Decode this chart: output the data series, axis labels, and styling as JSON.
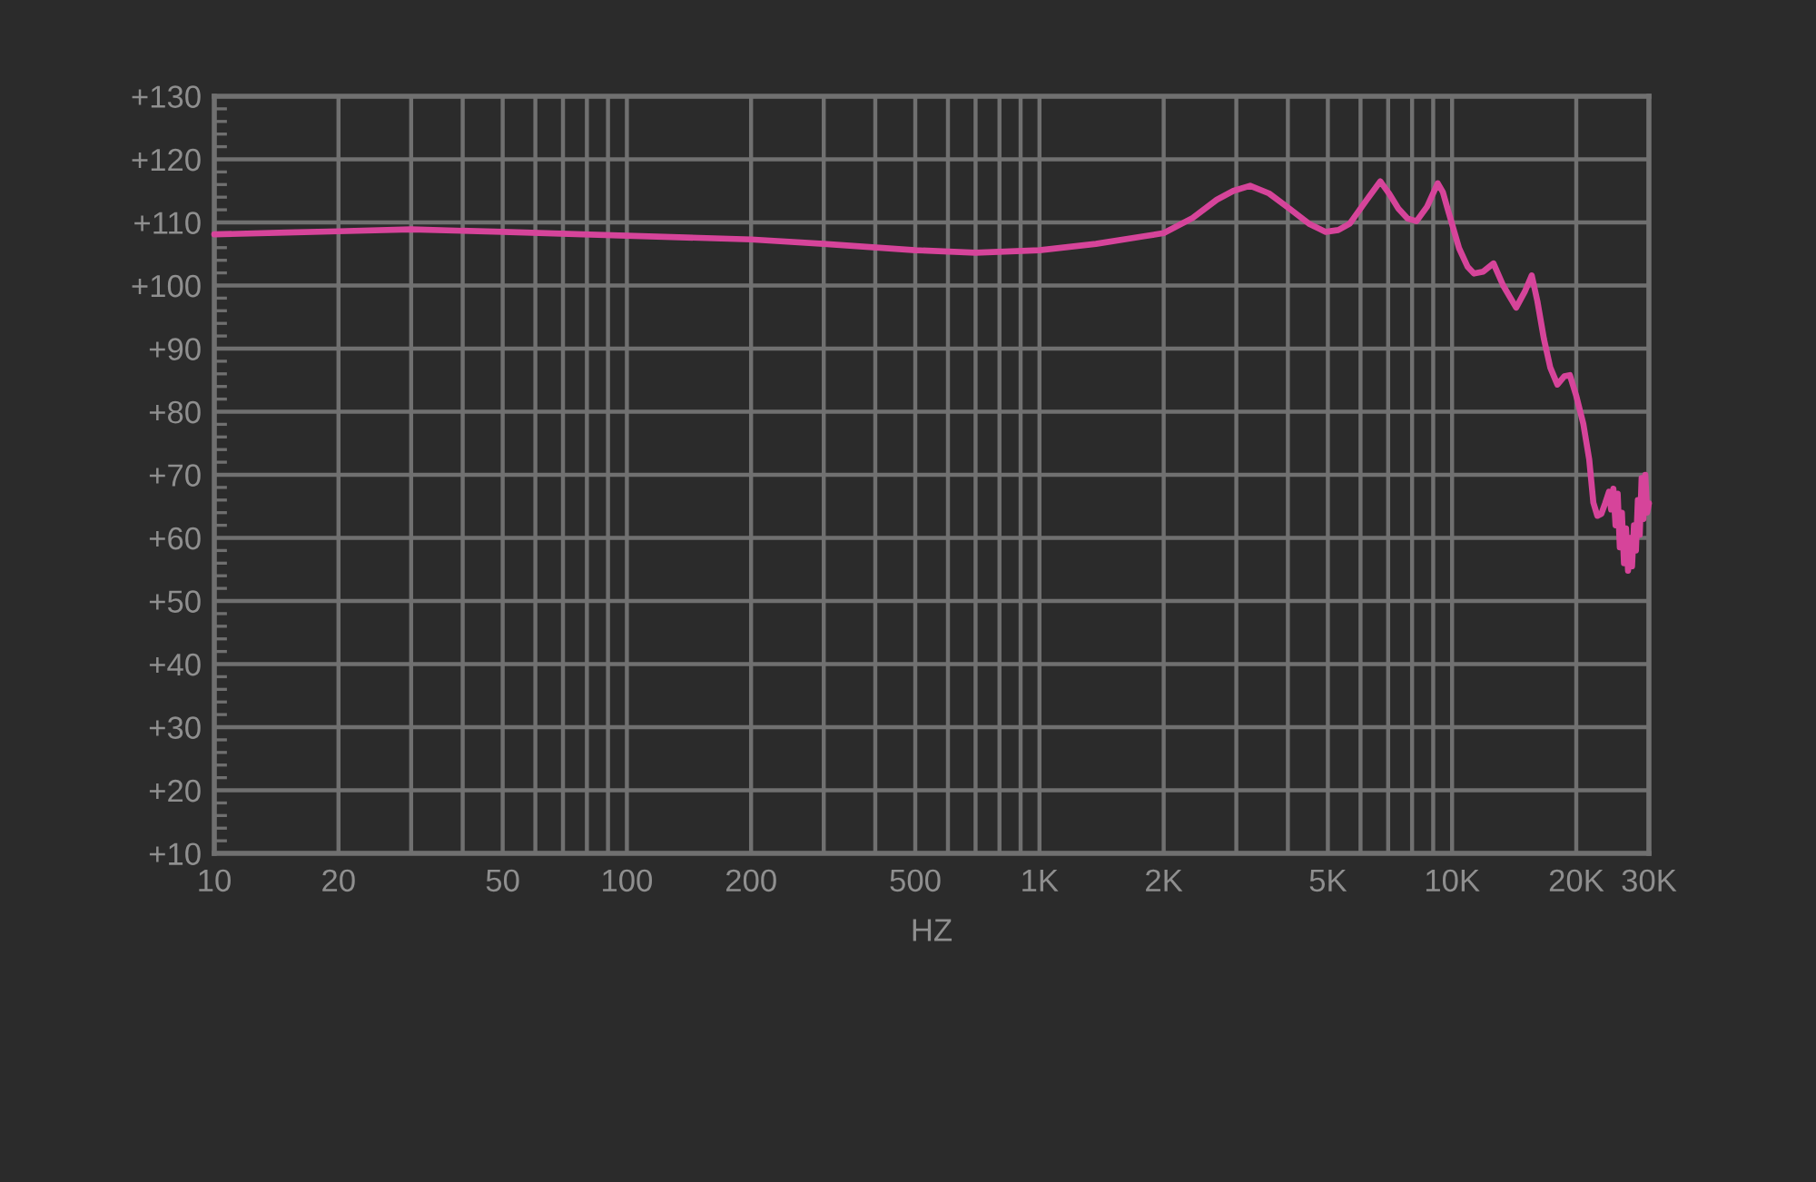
{
  "chart_data": {
    "type": "line",
    "xlabel": "HZ",
    "log": "x",
    "grid": true,
    "line_style": "solid",
    "xlim": [
      10,
      30000
    ],
    "ylim": [
      10,
      130
    ],
    "xticks": [
      10,
      20,
      {
        "value": 30,
        "label": null
      },
      {
        "value": 40,
        "label": null
      },
      50,
      {
        "value": 60,
        "label": null
      },
      {
        "value": 70,
        "label": null
      },
      {
        "value": 80,
        "label": null
      },
      {
        "value": 90,
        "label": null
      },
      100,
      200,
      {
        "value": 300,
        "label": null
      },
      {
        "value": 400,
        "label": null
      },
      500,
      {
        "value": 600,
        "label": null
      },
      {
        "value": 700,
        "label": null
      },
      {
        "value": 800,
        "label": null
      },
      {
        "value": 900,
        "label": null
      },
      {
        "value": 1000,
        "label": "1K"
      },
      {
        "value": 2000,
        "label": "2K"
      },
      {
        "value": 3000,
        "label": null
      },
      {
        "value": 4000,
        "label": null
      },
      {
        "value": 5000,
        "label": "5K"
      },
      {
        "value": 6000,
        "label": null
      },
      {
        "value": 7000,
        "label": null
      },
      {
        "value": 8000,
        "label": null
      },
      {
        "value": 9000,
        "label": null
      },
      {
        "value": 10000,
        "label": "10K"
      },
      {
        "value": 20000,
        "label": "20K"
      },
      {
        "value": 30000,
        "label": "30K"
      }
    ],
    "yticks": [
      {
        "value": 10,
        "label": "+10"
      },
      {
        "value": 20,
        "label": "+20"
      },
      {
        "value": 30,
        "label": "+30"
      },
      {
        "value": 40,
        "label": "+40"
      },
      {
        "value": 50,
        "label": "+50"
      },
      {
        "value": 60,
        "label": "+60"
      },
      {
        "value": 70,
        "label": "+70"
      },
      {
        "value": 80,
        "label": "+80"
      },
      {
        "value": 90,
        "label": "+90"
      },
      {
        "value": 100,
        "label": "+100"
      },
      {
        "value": 110,
        "label": "+110"
      },
      {
        "value": 120,
        "label": "+120"
      },
      {
        "value": 130,
        "label": "+130"
      }
    ],
    "series": [
      {
        "color": "#d6449a",
        "x": [
          10,
          15,
          20,
          30,
          50,
          100,
          200,
          300,
          500,
          700,
          1000,
          1370,
          1790,
          2000,
          2350,
          2690,
          2950,
          3240,
          3600,
          4030,
          4500,
          4940,
          5300,
          5650,
          6200,
          6700,
          7050,
          7410,
          7800,
          8200,
          8700,
          9230,
          9500,
          9710,
          10400,
          10900,
          11300,
          11900,
          12600,
          13300,
          14300,
          15000,
          15600,
          16100,
          16700,
          17300,
          18000,
          18700,
          19300,
          20000,
          20800,
          21500,
          22000,
          22500,
          23000,
          23500,
          24000,
          24300,
          24600,
          24900,
          25200,
          25500,
          25800,
          26100,
          26400,
          26700,
          27000,
          27300,
          27600,
          27900,
          28200,
          28500,
          28800,
          29100,
          29400,
          29700,
          30000
        ],
        "values": [
          108.1,
          108.4,
          108.6,
          108.9,
          108.5,
          107.9,
          107.3,
          106.6,
          105.6,
          105.2,
          105.6,
          106.6,
          107.8,
          108.3,
          110.7,
          113.6,
          115.0,
          115.8,
          114.6,
          112.2,
          109.8,
          108.5,
          108.8,
          109.8,
          113.5,
          116.5,
          114.5,
          112.2,
          110.6,
          110.2,
          112.5,
          116.2,
          114.8,
          112.6,
          105.9,
          103.0,
          101.9,
          102.2,
          103.5,
          100.0,
          96.5,
          99.0,
          101.6,
          97.5,
          91.5,
          87.0,
          84.3,
          85.6,
          85.8,
          82.5,
          78.1,
          72.4,
          65.6,
          63.5,
          63.8,
          65.5,
          67.3,
          64.5,
          67.8,
          62.0,
          67.0,
          58.5,
          64.0,
          56.0,
          61.5,
          54.8,
          60.0,
          55.5,
          62.0,
          58.0,
          66.0,
          60.5,
          69.5,
          63.0,
          70.0,
          64.0,
          65.5
        ]
      }
    ]
  }
}
